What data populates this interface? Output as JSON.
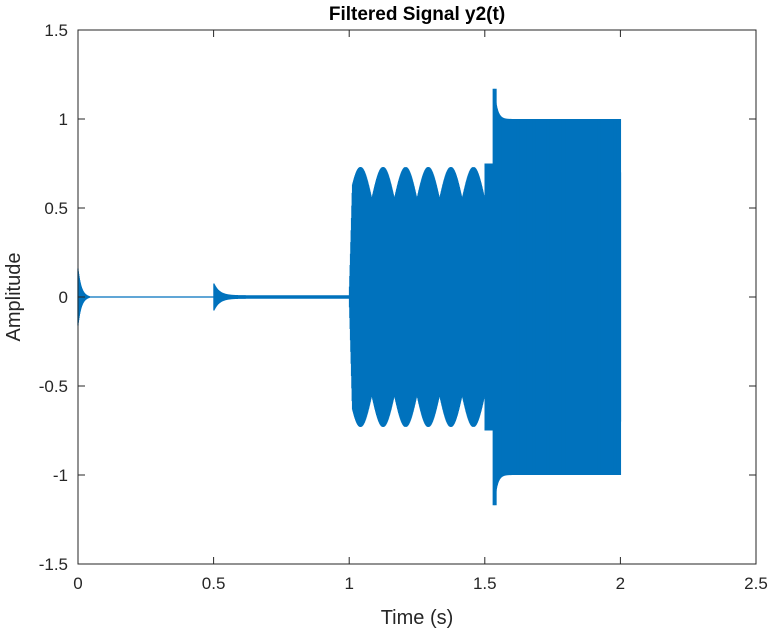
{
  "chart_data": {
    "type": "line",
    "title": "Filtered Signal y2(t)",
    "xlabel": "Time (s)",
    "ylabel": "Amplitude",
    "xlim": [
      0,
      2.5
    ],
    "ylim": [
      -1.5,
      1.5
    ],
    "xticks": [
      0,
      0.5,
      1,
      1.5,
      2,
      2.5
    ],
    "xtick_labels": [
      "0",
      "0.5",
      "1",
      "1.5",
      "2",
      "2.5"
    ],
    "yticks": [
      -1.5,
      -1,
      -0.5,
      0,
      0.5,
      1,
      1.5
    ],
    "ytick_labels": [
      "-1.5",
      "-1",
      "-0.5",
      "0",
      "0.5",
      "1",
      "1.5"
    ],
    "grid": false,
    "legend": "none",
    "series": [
      {
        "color": "#0072BD",
        "segments": [
          {
            "t_start": 0,
            "t_end": 0.5,
            "description_values": {
              "transient_peak_max": 0.16,
              "transient_peak_min": -0.16,
              "steady_amplitude": 0
            }
          },
          {
            "t_start": 0.5,
            "t_end": 1.0,
            "description_values": {
              "transient_peak_max": 0.07,
              "transient_peak_min": -0.05,
              "steady_amplitude": 0.01
            }
          },
          {
            "t_start": 1.0,
            "t_end": 1.5,
            "description_values": {
              "envelope_max": 0.73,
              "envelope_min_at_beats": 0.55,
              "beat_period_s": 0.0833,
              "transient_peak_max": 0.73
            }
          },
          {
            "t_start": 1.5,
            "t_end": 2.0,
            "description_values": {
              "envelope_max": 1.0,
              "transient_peak_max": 1.17,
              "transient_peak_min": -1.17,
              "oscillation_count_visible": 40
            }
          }
        ]
      }
    ]
  }
}
